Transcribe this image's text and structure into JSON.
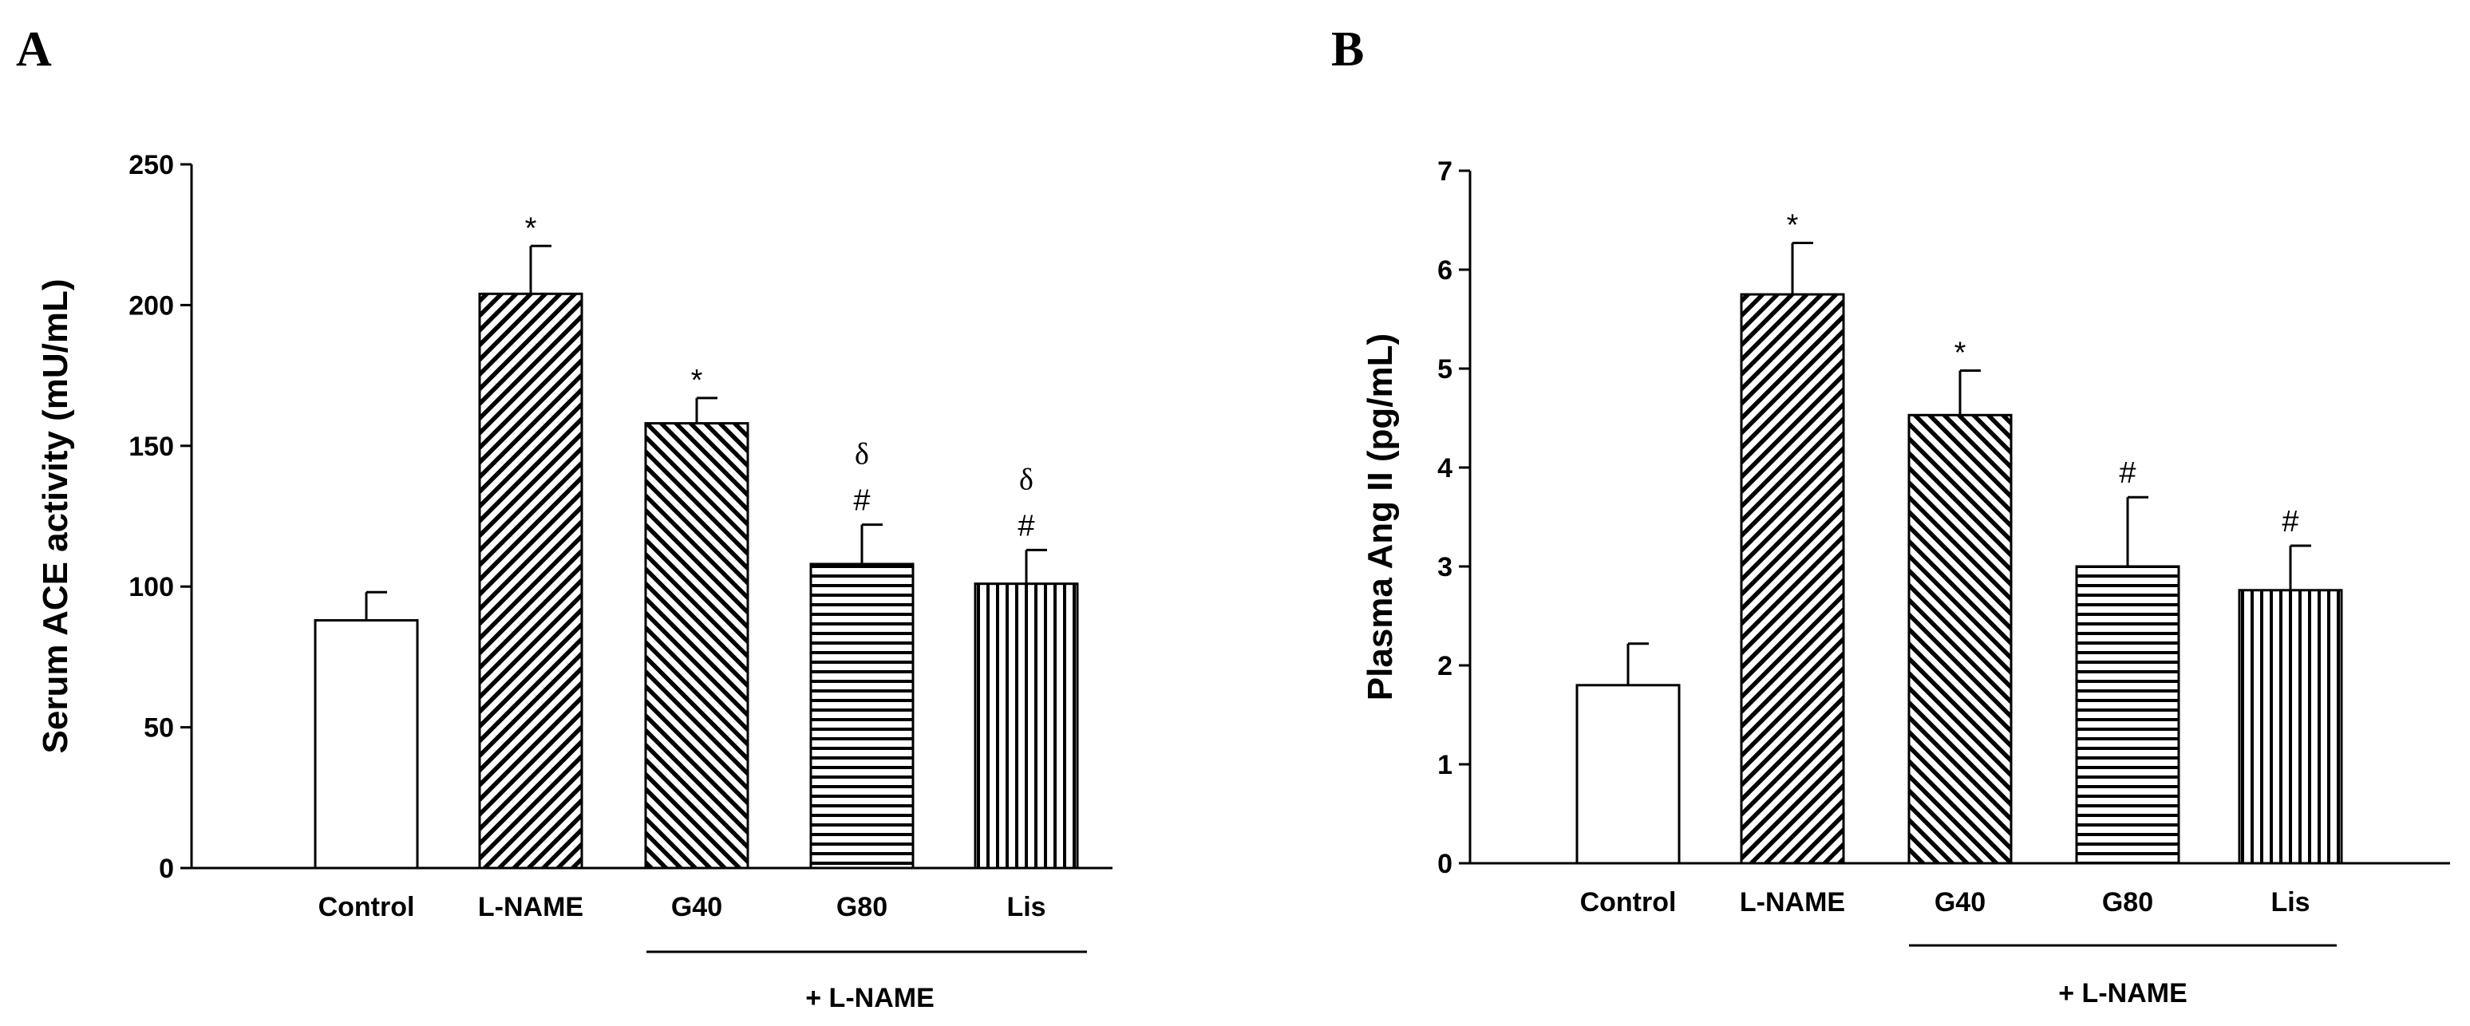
{
  "chart_data": [
    {
      "panel": "A",
      "type": "bar",
      "title": "",
      "xlabel": "",
      "ylabel": "Serum ACE activity (mU/mL)",
      "ylim": [
        0,
        250
      ],
      "yticks": [
        0,
        50,
        100,
        150,
        200,
        250
      ],
      "categories": [
        "Control",
        "L-NAME",
        "G40",
        "G80",
        "Lis"
      ],
      "values": [
        88,
        204,
        158,
        108,
        101
      ],
      "errors": [
        10,
        17,
        9,
        14,
        12
      ],
      "patterns": [
        "none",
        "diag-right",
        "diag-left",
        "horizontal",
        "vertical"
      ],
      "annotations": [
        {
          "index": 1,
          "labels": [
            "*"
          ]
        },
        {
          "index": 2,
          "labels": [
            "*"
          ]
        },
        {
          "index": 3,
          "labels": [
            "#",
            "δ"
          ]
        },
        {
          "index": 4,
          "labels": [
            "#",
            "δ"
          ]
        }
      ],
      "group_label": "+ L-NAME",
      "group_range": [
        2,
        4
      ]
    },
    {
      "panel": "B",
      "type": "bar",
      "title": "",
      "xlabel": "",
      "ylabel": "Plasma Ang II (pg/mL)",
      "ylim": [
        0,
        7
      ],
      "yticks": [
        0,
        1,
        2,
        3,
        4,
        5,
        6,
        7
      ],
      "categories": [
        "Control",
        "L-NAME",
        "G40",
        "G80",
        "Lis"
      ],
      "values": [
        1.8,
        5.75,
        4.53,
        3.0,
        2.76
      ],
      "errors": [
        0.42,
        0.52,
        0.45,
        0.7,
        0.45
      ],
      "patterns": [
        "none",
        "diag-right",
        "diag-left",
        "horizontal",
        "vertical"
      ],
      "annotations": [
        {
          "index": 1,
          "labels": [
            "*"
          ]
        },
        {
          "index": 2,
          "labels": [
            "*"
          ]
        },
        {
          "index": 3,
          "labels": [
            "#"
          ]
        },
        {
          "index": 4,
          "labels": [
            "#"
          ]
        }
      ],
      "group_label": "+ L-NAME",
      "group_range": [
        2,
        4
      ]
    }
  ]
}
